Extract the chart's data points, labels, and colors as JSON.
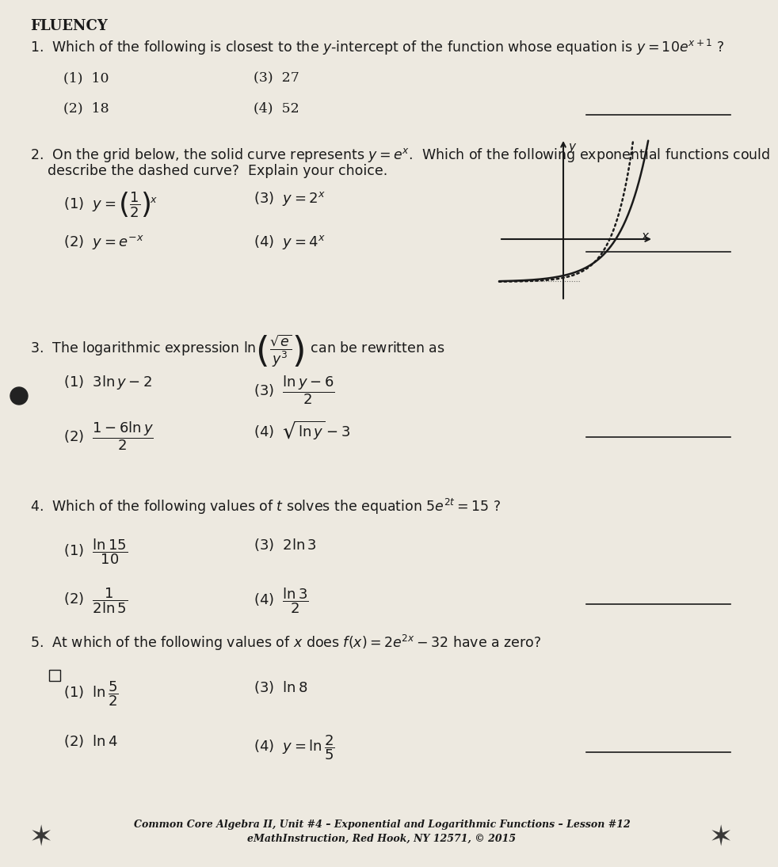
{
  "title": "FLUENCY",
  "background_color": "#ede9e0",
  "text_color": "#1a1a1a",
  "footer_line1": "Common Core Algebra II, Unit #4 – Exponential and Logarithmic Functions – Lesson #12",
  "footer_line2": "eMathInstruction, Red Hook, NY 12571, © 2015",
  "q1_text": "1.  Which of the following is closest to the $y$-intercept of the function whose equation is $y=10e^{x+1}$ ?",
  "q1_a": "(1)  10",
  "q1_b": "(3)  27",
  "q1_c": "(2)  18",
  "q1_d": "(4)  52",
  "q2_line1": "2.  On the grid below, the solid curve represents $y=e^x$.  Which of the following exponential functions could",
  "q2_line2": "    describe the dashed curve?  Explain your choice.",
  "q2_a": "(1)  $y=\\left(\\dfrac{1}{2}\\right)^{\\!x}$",
  "q2_b": "(3)  $y=2^x$",
  "q2_c": "(2)  $y=e^{-x}$",
  "q2_d": "(4)  $y=4^x$",
  "q3_text": "3.  The logarithmic expression $\\ln\\!\\left(\\dfrac{\\sqrt{e}}{y^3}\\right)$ can be rewritten as",
  "q3_a": "(1)  $3\\ln y-2$",
  "q3_b": "(3)  $\\dfrac{\\ln y-6}{2}$",
  "q3_c": "(2)  $\\dfrac{1-6\\ln y}{2}$",
  "q3_d": "(4)  $\\sqrt{\\ln y}-3$",
  "q4_text": "4.  Which of the following values of $t$ solves the equation $5e^{2t}=15$ ?",
  "q4_a": "(1)  $\\dfrac{\\ln 15}{10}$",
  "q4_b": "(3)  $2\\ln 3$",
  "q4_c": "(2)  $\\dfrac{1}{2\\ln 5}$",
  "q4_d": "(4)  $\\dfrac{\\ln 3}{2}$",
  "q5_text": "5.  At which of the following values of $x$ does $f(x)=2e^{2x}-32$ have a zero?",
  "q5_a": "(1)  $\\ln\\dfrac{5}{2}$",
  "q5_b": "(3)  $\\ln 8$",
  "q5_c": "(2)  $\\ln 4$",
  "q5_d": "(4)  $y=\\ln\\dfrac{2}{5}$"
}
